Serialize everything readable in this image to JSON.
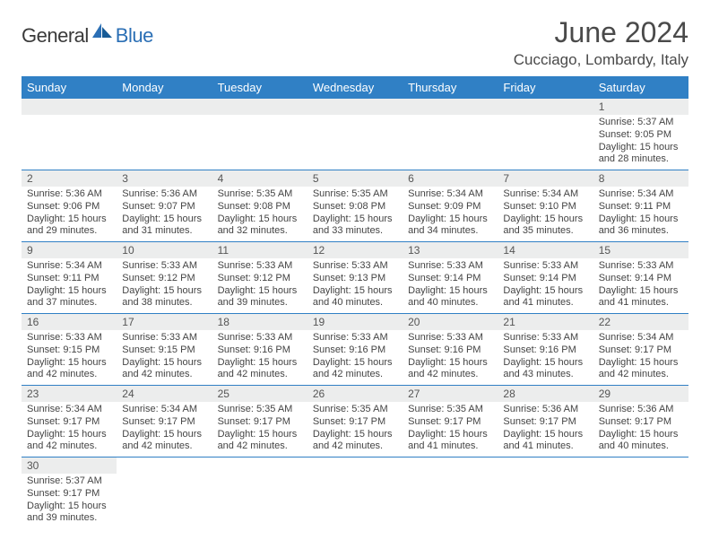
{
  "brand": {
    "part1": "General",
    "part2": "Blue"
  },
  "title": "June 2024",
  "location": "Cucciago, Lombardy, Italy",
  "colors": {
    "header_bg": "#3080c5",
    "header_text": "#ffffff",
    "daynum_bg": "#eceded",
    "row_border": "#3080c5",
    "brand_accent": "#2b6fb5"
  },
  "day_headers": [
    "Sunday",
    "Monday",
    "Tuesday",
    "Wednesday",
    "Thursday",
    "Friday",
    "Saturday"
  ],
  "weeks": [
    [
      null,
      null,
      null,
      null,
      null,
      null,
      {
        "n": "1",
        "sr": "5:37 AM",
        "ss": "9:05 PM",
        "dl": "15 hours and 28 minutes."
      }
    ],
    [
      {
        "n": "2",
        "sr": "5:36 AM",
        "ss": "9:06 PM",
        "dl": "15 hours and 29 minutes."
      },
      {
        "n": "3",
        "sr": "5:36 AM",
        "ss": "9:07 PM",
        "dl": "15 hours and 31 minutes."
      },
      {
        "n": "4",
        "sr": "5:35 AM",
        "ss": "9:08 PM",
        "dl": "15 hours and 32 minutes."
      },
      {
        "n": "5",
        "sr": "5:35 AM",
        "ss": "9:08 PM",
        "dl": "15 hours and 33 minutes."
      },
      {
        "n": "6",
        "sr": "5:34 AM",
        "ss": "9:09 PM",
        "dl": "15 hours and 34 minutes."
      },
      {
        "n": "7",
        "sr": "5:34 AM",
        "ss": "9:10 PM",
        "dl": "15 hours and 35 minutes."
      },
      {
        "n": "8",
        "sr": "5:34 AM",
        "ss": "9:11 PM",
        "dl": "15 hours and 36 minutes."
      }
    ],
    [
      {
        "n": "9",
        "sr": "5:34 AM",
        "ss": "9:11 PM",
        "dl": "15 hours and 37 minutes."
      },
      {
        "n": "10",
        "sr": "5:33 AM",
        "ss": "9:12 PM",
        "dl": "15 hours and 38 minutes."
      },
      {
        "n": "11",
        "sr": "5:33 AM",
        "ss": "9:12 PM",
        "dl": "15 hours and 39 minutes."
      },
      {
        "n": "12",
        "sr": "5:33 AM",
        "ss": "9:13 PM",
        "dl": "15 hours and 40 minutes."
      },
      {
        "n": "13",
        "sr": "5:33 AM",
        "ss": "9:14 PM",
        "dl": "15 hours and 40 minutes."
      },
      {
        "n": "14",
        "sr": "5:33 AM",
        "ss": "9:14 PM",
        "dl": "15 hours and 41 minutes."
      },
      {
        "n": "15",
        "sr": "5:33 AM",
        "ss": "9:14 PM",
        "dl": "15 hours and 41 minutes."
      }
    ],
    [
      {
        "n": "16",
        "sr": "5:33 AM",
        "ss": "9:15 PM",
        "dl": "15 hours and 42 minutes."
      },
      {
        "n": "17",
        "sr": "5:33 AM",
        "ss": "9:15 PM",
        "dl": "15 hours and 42 minutes."
      },
      {
        "n": "18",
        "sr": "5:33 AM",
        "ss": "9:16 PM",
        "dl": "15 hours and 42 minutes."
      },
      {
        "n": "19",
        "sr": "5:33 AM",
        "ss": "9:16 PM",
        "dl": "15 hours and 42 minutes."
      },
      {
        "n": "20",
        "sr": "5:33 AM",
        "ss": "9:16 PM",
        "dl": "15 hours and 42 minutes."
      },
      {
        "n": "21",
        "sr": "5:33 AM",
        "ss": "9:16 PM",
        "dl": "15 hours and 43 minutes."
      },
      {
        "n": "22",
        "sr": "5:34 AM",
        "ss": "9:17 PM",
        "dl": "15 hours and 42 minutes."
      }
    ],
    [
      {
        "n": "23",
        "sr": "5:34 AM",
        "ss": "9:17 PM",
        "dl": "15 hours and 42 minutes."
      },
      {
        "n": "24",
        "sr": "5:34 AM",
        "ss": "9:17 PM",
        "dl": "15 hours and 42 minutes."
      },
      {
        "n": "25",
        "sr": "5:35 AM",
        "ss": "9:17 PM",
        "dl": "15 hours and 42 minutes."
      },
      {
        "n": "26",
        "sr": "5:35 AM",
        "ss": "9:17 PM",
        "dl": "15 hours and 42 minutes."
      },
      {
        "n": "27",
        "sr": "5:35 AM",
        "ss": "9:17 PM",
        "dl": "15 hours and 41 minutes."
      },
      {
        "n": "28",
        "sr": "5:36 AM",
        "ss": "9:17 PM",
        "dl": "15 hours and 41 minutes."
      },
      {
        "n": "29",
        "sr": "5:36 AM",
        "ss": "9:17 PM",
        "dl": "15 hours and 40 minutes."
      }
    ],
    [
      {
        "n": "30",
        "sr": "5:37 AM",
        "ss": "9:17 PM",
        "dl": "15 hours and 39 minutes."
      },
      null,
      null,
      null,
      null,
      null,
      null
    ]
  ],
  "labels": {
    "sunrise": "Sunrise:",
    "sunset": "Sunset:",
    "daylight": "Daylight:"
  }
}
